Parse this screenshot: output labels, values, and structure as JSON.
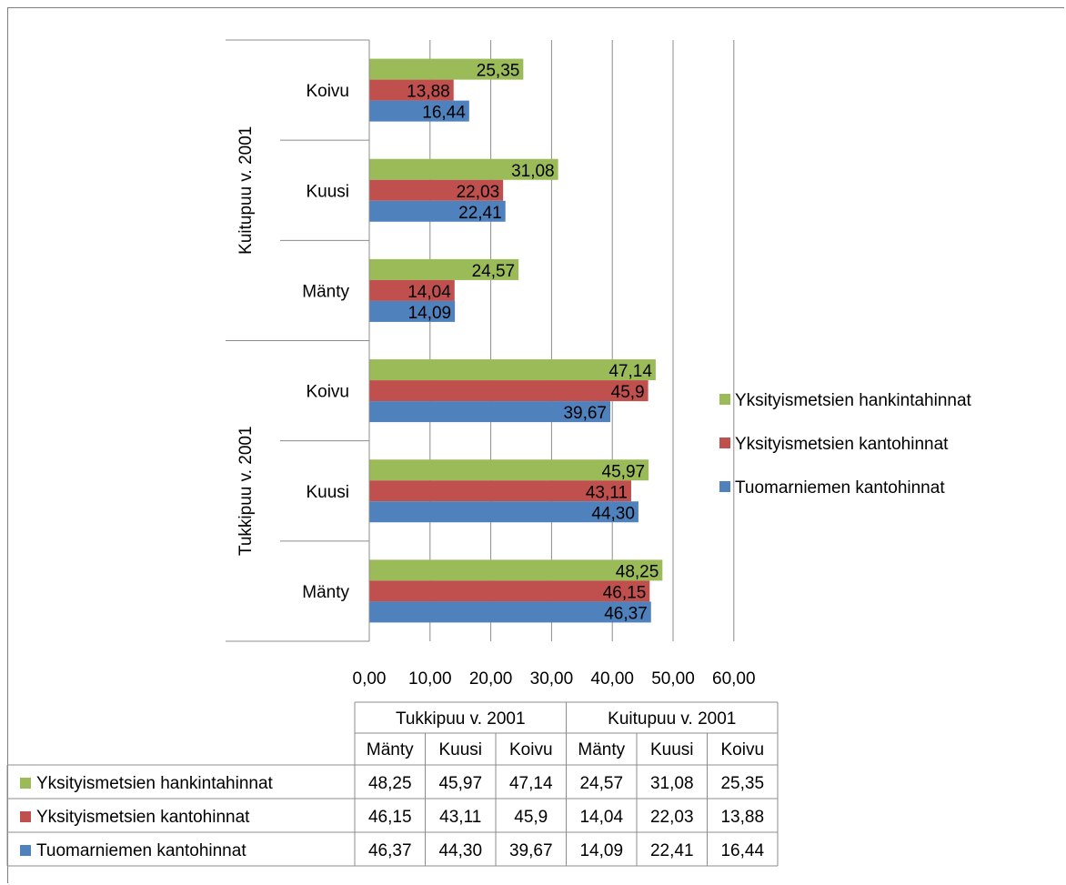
{
  "chart_data": {
    "type": "bar",
    "orientation": "horizontal",
    "groups": [
      {
        "label": "Tukkipuu v. 2001",
        "categories": [
          "Mänty",
          "Kuusi",
          "Koivu"
        ]
      },
      {
        "label": "Kuitupuu v. 2001",
        "categories": [
          "Mänty",
          "Kuusi",
          "Koivu"
        ]
      }
    ],
    "series": [
      {
        "name": "Yksityismetsien hankintahinnat",
        "color": "#9bbb59",
        "values": [
          48.25,
          45.97,
          47.14,
          24.57,
          31.08,
          25.35
        ],
        "labels": [
          "48,25",
          "45,97",
          "47,14",
          "24,57",
          "31,08",
          "25,35"
        ]
      },
      {
        "name": "Yksityismetsien kantohinnat",
        "color": "#c0504d",
        "values": [
          46.15,
          43.11,
          45.9,
          14.04,
          22.03,
          13.88
        ],
        "labels": [
          "46,15",
          "43,11",
          "45,9",
          "14,04",
          "22,03",
          "13,88"
        ]
      },
      {
        "name": "Tuomarniemen kantohinnat",
        "color": "#4f81bd",
        "values": [
          46.37,
          44.3,
          39.67,
          14.09,
          22.41,
          16.44
        ],
        "labels": [
          "46,37",
          "44,30",
          "39,67",
          "14,09",
          "22,41",
          "16,44"
        ]
      }
    ],
    "xlim": [
      0,
      60
    ],
    "ticks": [
      0,
      10,
      20,
      30,
      40,
      50,
      60
    ],
    "tick_labels": [
      "0,00",
      "10,00",
      "20,00",
      "30,00",
      "40,00",
      "50,00",
      "60,00"
    ],
    "grid": true,
    "legend": "right",
    "data_table": true
  }
}
